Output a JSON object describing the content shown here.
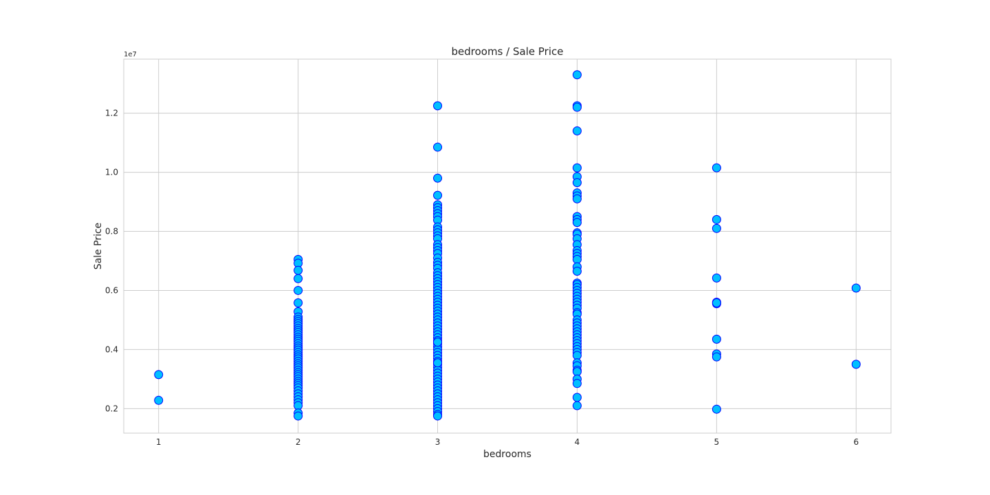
{
  "chart_data": {
    "type": "scatter",
    "title": "bedrooms / Sale Price",
    "xlabel": "bedrooms",
    "ylabel": "Sale Price",
    "y_offset_label": "1e7",
    "xlim": [
      0.75,
      6.25
    ],
    "ylim": [
      1.17,
      13.83
    ],
    "x_ticks": [
      1,
      2,
      3,
      4,
      5,
      6
    ],
    "y_ticks": [
      0.2,
      0.4,
      0.6,
      0.8,
      1.0,
      1.2
    ],
    "y_tick_labels": [
      "0.2",
      "0.4",
      "0.6",
      "0.8",
      "1.0",
      "1.2"
    ],
    "y_unit_note": "y values in millions (axis scale 1e7)",
    "grid": true,
    "colors": {
      "marker_fill": "#00bfff",
      "marker_edge": "#0000ff",
      "grid": "#cccccc"
    },
    "series": [
      {
        "x": [
          1,
          1
        ],
        "y": [
          3.15,
          2.28
        ]
      },
      {
        "x": [
          2,
          2,
          2,
          2,
          2,
          2,
          2,
          2,
          2,
          2,
          2,
          2,
          2,
          2,
          2,
          2,
          2,
          2,
          2,
          2,
          2,
          2,
          2,
          2,
          2,
          2,
          2,
          2,
          2,
          2,
          2,
          2,
          2,
          2,
          2,
          2,
          2,
          2,
          2,
          2,
          2,
          2,
          2,
          2,
          2,
          2,
          2,
          2
        ],
        "y": [
          7.05,
          6.92,
          6.68,
          6.4,
          6.0,
          5.58,
          5.28,
          5.1,
          5.02,
          4.95,
          4.88,
          4.8,
          4.72,
          4.65,
          4.58,
          4.5,
          4.42,
          4.35,
          4.28,
          4.2,
          4.12,
          4.05,
          3.98,
          3.9,
          3.82,
          3.75,
          3.68,
          3.6,
          3.52,
          3.45,
          3.38,
          3.3,
          3.22,
          3.15,
          3.08,
          3.0,
          2.92,
          2.85,
          2.78,
          2.7,
          2.6,
          2.5,
          2.4,
          2.3,
          2.2,
          2.1,
          1.85,
          1.75
        ]
      },
      {
        "x": [
          3,
          3,
          3,
          3,
          3,
          3,
          3,
          3,
          3,
          3,
          3,
          3,
          3,
          3,
          3,
          3,
          3,
          3,
          3,
          3,
          3,
          3,
          3,
          3,
          3,
          3,
          3,
          3,
          3,
          3,
          3,
          3,
          3,
          3,
          3,
          3,
          3,
          3,
          3,
          3,
          3,
          3,
          3,
          3,
          3,
          3,
          3,
          3,
          3,
          3,
          3,
          3,
          3,
          3,
          3,
          3,
          3,
          3,
          3,
          3,
          3,
          3,
          3,
          3,
          3,
          3,
          3,
          3,
          3,
          3,
          3,
          3,
          3,
          3,
          3
        ],
        "y": [
          12.25,
          10.85,
          9.8,
          9.22,
          8.9,
          8.8,
          8.7,
          8.6,
          8.5,
          8.38,
          8.15,
          8.05,
          7.95,
          7.85,
          7.75,
          7.55,
          7.45,
          7.35,
          7.25,
          7.1,
          6.95,
          6.85,
          6.75,
          6.6,
          6.5,
          6.4,
          6.3,
          6.2,
          6.1,
          6.0,
          5.9,
          5.8,
          5.7,
          5.6,
          5.5,
          5.4,
          5.3,
          5.2,
          5.1,
          5.0,
          4.9,
          4.8,
          4.7,
          4.6,
          4.5,
          4.4,
          4.3,
          4.2,
          4.1,
          4.0,
          3.9,
          3.8,
          3.7,
          3.6,
          3.5,
          3.4,
          3.3,
          3.2,
          3.1,
          3.0,
          2.9,
          2.8,
          2.7,
          2.6,
          2.5,
          2.4,
          2.3,
          2.2,
          2.1,
          2.0,
          1.9,
          1.8,
          1.75,
          3.55,
          4.25
        ]
      },
      {
        "x": [
          4,
          4,
          4,
          4,
          4,
          4,
          4,
          4,
          4,
          4,
          4,
          4,
          4,
          4,
          4,
          4,
          4,
          4,
          4,
          4,
          4,
          4,
          4,
          4,
          4,
          4,
          4,
          4,
          4,
          4,
          4,
          4,
          4,
          4,
          4,
          4,
          4,
          4,
          4,
          4,
          4,
          4,
          4,
          4,
          4,
          4,
          4,
          4,
          4,
          4,
          4,
          4,
          4,
          4,
          4,
          4
        ],
        "y": [
          13.3,
          12.25,
          12.2,
          11.4,
          10.15,
          9.85,
          9.65,
          9.3,
          9.2,
          9.1,
          8.5,
          8.4,
          8.3,
          7.95,
          7.9,
          7.75,
          7.55,
          7.35,
          7.25,
          7.15,
          7.05,
          6.8,
          6.65,
          6.25,
          6.2,
          6.1,
          6.0,
          5.9,
          5.8,
          5.7,
          5.6,
          5.5,
          5.4,
          5.25,
          5.2,
          5.0,
          4.9,
          4.8,
          4.7,
          4.6,
          4.5,
          4.4,
          4.3,
          4.2,
          4.1,
          4.0,
          3.9,
          3.8,
          3.55,
          3.45,
          3.3,
          3.25,
          3.0,
          2.85,
          2.38,
          2.1
        ]
      },
      {
        "x": [
          5,
          5,
          5,
          5,
          5,
          5,
          5,
          5,
          5,
          5,
          5
        ],
        "y": [
          10.15,
          8.4,
          8.1,
          6.42,
          5.6,
          5.55,
          4.35,
          3.85,
          3.75,
          1.98,
          5.58
        ]
      },
      {
        "x": [
          6,
          6
        ],
        "y": [
          6.08,
          3.5
        ]
      }
    ]
  }
}
